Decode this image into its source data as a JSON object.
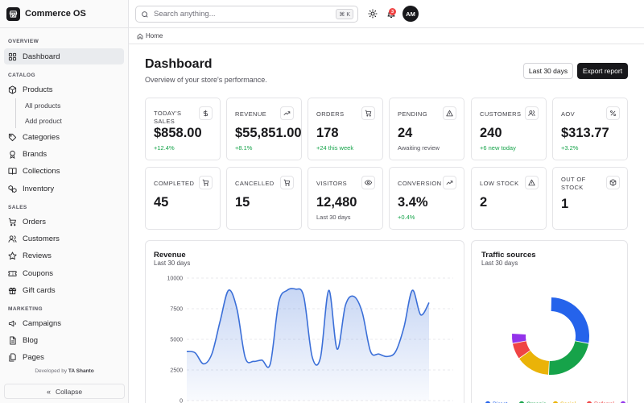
{
  "app": {
    "name": "Commerce OS"
  },
  "sidebar": {
    "sections": [
      {
        "title": "OVERVIEW",
        "items": [
          {
            "label": "Dashboard",
            "icon": "dashboard-icon",
            "active": true
          }
        ]
      },
      {
        "title": "CATALOG",
        "items": [
          {
            "label": "Products",
            "icon": "package-icon",
            "children": [
              {
                "label": "All products"
              },
              {
                "label": "Add product"
              }
            ]
          },
          {
            "label": "Categories",
            "icon": "tag-icon"
          },
          {
            "label": "Brands",
            "icon": "award-icon"
          },
          {
            "label": "Collections",
            "icon": "book-icon"
          },
          {
            "label": "Inventory",
            "icon": "boxes-icon"
          }
        ]
      },
      {
        "title": "SALES",
        "items": [
          {
            "label": "Orders",
            "icon": "cart-icon"
          },
          {
            "label": "Customers",
            "icon": "users-icon"
          },
          {
            "label": "Reviews",
            "icon": "star-icon"
          },
          {
            "label": "Coupons",
            "icon": "ticket-icon"
          },
          {
            "label": "Gift cards",
            "icon": "gift-icon"
          }
        ]
      },
      {
        "title": "MARKETING",
        "items": [
          {
            "label": "Campaigns",
            "icon": "megaphone-icon"
          },
          {
            "label": "Blog",
            "icon": "file-icon"
          },
          {
            "label": "Pages",
            "icon": "files-icon"
          }
        ]
      }
    ],
    "developer_prefix": "Developed by",
    "developer_name": "TA Shanto",
    "collapse_label": "Collapse"
  },
  "topbar": {
    "search_placeholder": "Search anything...",
    "shortcut": "⌘ K",
    "notification_count": "3",
    "avatar_initials": "AM"
  },
  "breadcrumb": {
    "home": "Home"
  },
  "header": {
    "title": "Dashboard",
    "subtitle": "Overview of your store's performance.",
    "range_button": "Last 30 days",
    "export_button": "Export report"
  },
  "stats_row1": [
    {
      "label": "TODAY'S SALES",
      "value": "$858.00",
      "note": "+12.4%",
      "positive": true,
      "icon": "dollar-icon"
    },
    {
      "label": "REVENUE",
      "value": "$55,851.00",
      "note": "+8.1%",
      "positive": true,
      "icon": "trending-up-icon"
    },
    {
      "label": "ORDERS",
      "value": "178",
      "note": "+24 this week",
      "positive": true,
      "icon": "cart-icon"
    },
    {
      "label": "PENDING",
      "value": "24",
      "note": "Awaiting review",
      "positive": false,
      "icon": "alert-icon"
    },
    {
      "label": "CUSTOMERS",
      "value": "240",
      "note": "+6 new today",
      "positive": true,
      "icon": "users-icon"
    },
    {
      "label": "AOV",
      "value": "$313.77",
      "note": "+3.2%",
      "positive": true,
      "icon": "percent-icon"
    }
  ],
  "stats_row2": [
    {
      "label": "COMPLETED",
      "value": "45",
      "note": "",
      "icon": "cart-icon"
    },
    {
      "label": "CANCELLED",
      "value": "15",
      "note": "",
      "icon": "cart-icon"
    },
    {
      "label": "VISITORS",
      "value": "12,480",
      "note": "Last 30 days",
      "positive": false,
      "icon": "eye-icon"
    },
    {
      "label": "CONVERSION",
      "value": "3.4%",
      "note": "+0.4%",
      "positive": true,
      "icon": "trending-up-icon"
    },
    {
      "label": "LOW STOCK",
      "value": "2",
      "note": "",
      "icon": "alert-icon"
    },
    {
      "label": "OUT OF STOCK",
      "value": "1",
      "note": "",
      "icon": "box-icon"
    }
  ],
  "chart_data": [
    {
      "type": "area",
      "title": "Revenue",
      "subtitle": "Last 30 days",
      "ylim": [
        0,
        10000
      ],
      "yticks": [
        0,
        2500,
        5000,
        7500,
        10000
      ],
      "values": [
        4000,
        3900,
        3000,
        3800,
        6500,
        9000,
        7500,
        3500,
        3200,
        3300,
        3000,
        8000,
        9000,
        9100,
        8500,
        3600,
        3500,
        9000,
        4200,
        7800,
        8500,
        7200,
        4000,
        3800,
        3600,
        4000,
        6000,
        9000,
        7000,
        8000
      ],
      "color": "#3b6fd8"
    },
    {
      "type": "pie",
      "title": "Traffic sources",
      "subtitle": "Last 30 days",
      "slices": [
        {
          "label": "Direct",
          "value": 33,
          "color": "#2563eb"
        },
        {
          "label": "Organic",
          "value": 27,
          "color": "#16a34a"
        },
        {
          "label": "Social",
          "value": 17,
          "color": "#eab308"
        },
        {
          "label": "Referral",
          "value": 8,
          "color": "#ef4444"
        },
        {
          "label": "Email",
          "value": 5,
          "color": "#9333ea"
        }
      ]
    }
  ]
}
